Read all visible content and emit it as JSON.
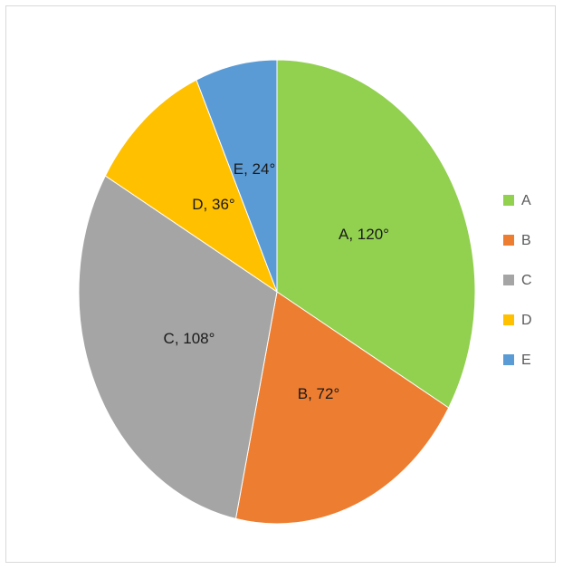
{
  "chart_data": {
    "type": "pie",
    "categories": [
      "A",
      "B",
      "C",
      "D",
      "E"
    ],
    "values": [
      120,
      72,
      108,
      36,
      24
    ],
    "data_labels": [
      "A, 120°",
      "B, 72°",
      "C, 108°",
      "D, 36°",
      "E, 24°"
    ],
    "colors": [
      "#92d050",
      "#ed7d31",
      "#a5a5a5",
      "#ffc000",
      "#5b9bd5"
    ],
    "legend": {
      "placement": "right",
      "entries": [
        "A",
        "B",
        "C",
        "D",
        "E"
      ]
    },
    "start_angle": "top",
    "direction": "clockwise"
  }
}
